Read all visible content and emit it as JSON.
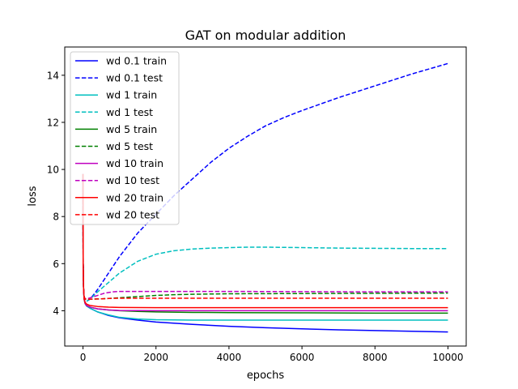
{
  "chart_data": {
    "type": "line",
    "title": "GAT on modular addition",
    "xlabel": "epochs",
    "ylabel": "loss",
    "xlim": [
      -500,
      10500
    ],
    "ylim": [
      2.5,
      15.2
    ],
    "xticks": [
      0,
      2000,
      4000,
      6000,
      8000,
      10000
    ],
    "yticks": [
      4,
      6,
      8,
      10,
      12,
      14
    ],
    "legend_position": "upper left",
    "grid": false,
    "series": [
      {
        "name": "wd 0.1 train",
        "color": "#0000ff",
        "style": "solid",
        "x": [
          0,
          5,
          15,
          30,
          60,
          100,
          200,
          400,
          700,
          1000,
          1500,
          2000,
          3000,
          4000,
          5000,
          6000,
          7000,
          8000,
          9000,
          10000
        ],
        "y": [
          9.8,
          6.0,
          5.0,
          4.5,
          4.3,
          4.2,
          4.1,
          3.95,
          3.8,
          3.7,
          3.6,
          3.52,
          3.42,
          3.34,
          3.28,
          3.23,
          3.19,
          3.16,
          3.13,
          3.1
        ]
      },
      {
        "name": "wd 0.1 test",
        "color": "#0000ff",
        "style": "dashed",
        "x": [
          0,
          5,
          15,
          30,
          60,
          100,
          200,
          400,
          700,
          1000,
          1500,
          2000,
          2500,
          3000,
          3500,
          4000,
          4500,
          5000,
          5500,
          6000,
          7000,
          8000,
          9000,
          10000
        ],
        "y": [
          9.8,
          6.0,
          5.0,
          4.6,
          4.45,
          4.4,
          4.5,
          4.9,
          5.6,
          6.3,
          7.3,
          8.1,
          8.9,
          9.6,
          10.3,
          10.9,
          11.4,
          11.85,
          12.2,
          12.5,
          13.05,
          13.55,
          14.05,
          14.5
        ]
      },
      {
        "name": "wd 1 train",
        "color": "#00bfbf",
        "style": "solid",
        "x": [
          0,
          5,
          15,
          30,
          60,
          100,
          200,
          400,
          700,
          1000,
          1500,
          2000,
          3000,
          4000,
          5000,
          6000,
          8000,
          10000
        ],
        "y": [
          9.8,
          6.0,
          5.0,
          4.5,
          4.3,
          4.2,
          4.1,
          3.95,
          3.82,
          3.72,
          3.65,
          3.62,
          3.6,
          3.6,
          3.6,
          3.6,
          3.6,
          3.6
        ]
      },
      {
        "name": "wd 1 test",
        "color": "#00bfbf",
        "style": "dashed",
        "x": [
          0,
          5,
          15,
          30,
          60,
          100,
          200,
          400,
          700,
          1000,
          1500,
          2000,
          2500,
          3000,
          3500,
          4000,
          4500,
          5000,
          5500,
          6000,
          7000,
          8000,
          9000,
          10000
        ],
        "y": [
          9.8,
          6.0,
          5.0,
          4.6,
          4.45,
          4.4,
          4.5,
          4.8,
          5.2,
          5.6,
          6.1,
          6.4,
          6.55,
          6.62,
          6.66,
          6.68,
          6.7,
          6.7,
          6.69,
          6.68,
          6.66,
          6.65,
          6.64,
          6.64
        ]
      },
      {
        "name": "wd 5 train",
        "color": "#008000",
        "style": "solid",
        "x": [
          0,
          5,
          15,
          30,
          60,
          100,
          200,
          400,
          700,
          1000,
          1500,
          2000,
          3000,
          4000,
          6000,
          8000,
          10000
        ],
        "y": [
          9.8,
          6.0,
          5.0,
          4.5,
          4.3,
          4.22,
          4.15,
          4.08,
          4.03,
          4.0,
          3.97,
          3.95,
          3.93,
          3.92,
          3.91,
          3.9,
          3.9
        ]
      },
      {
        "name": "wd 5 test",
        "color": "#008000",
        "style": "dashed",
        "x": [
          0,
          5,
          15,
          30,
          60,
          100,
          200,
          400,
          700,
          1000,
          1500,
          2000,
          2500,
          3000,
          4000,
          6000,
          8000,
          10000
        ],
        "y": [
          9.8,
          6.0,
          5.0,
          4.6,
          4.5,
          4.48,
          4.49,
          4.5,
          4.52,
          4.55,
          4.6,
          4.65,
          4.68,
          4.7,
          4.72,
          4.73,
          4.74,
          4.75
        ]
      },
      {
        "name": "wd 10 train",
        "color": "#bf00bf",
        "style": "solid",
        "x": [
          0,
          5,
          15,
          30,
          60,
          100,
          200,
          400,
          700,
          1000,
          2000,
          4000,
          6000,
          8000,
          10000
        ],
        "y": [
          9.8,
          6.0,
          5.0,
          4.5,
          4.3,
          4.22,
          4.15,
          4.08,
          4.03,
          4.01,
          4.0,
          4.0,
          4.0,
          4.0,
          4.0
        ]
      },
      {
        "name": "wd 10 test",
        "color": "#bf00bf",
        "style": "dashed",
        "x": [
          0,
          5,
          15,
          30,
          60,
          100,
          200,
          400,
          600,
          800,
          1000,
          1500,
          2000,
          4000,
          6000,
          8000,
          10000
        ],
        "y": [
          9.8,
          6.0,
          5.0,
          4.6,
          4.5,
          4.5,
          4.55,
          4.65,
          4.75,
          4.8,
          4.82,
          4.82,
          4.82,
          4.82,
          4.81,
          4.8,
          4.8
        ]
      },
      {
        "name": "wd 20 train",
        "color": "#ff0000",
        "style": "solid",
        "x": [
          0,
          5,
          15,
          30,
          60,
          100,
          200,
          400,
          700,
          1000,
          2000,
          4000,
          6000,
          8000,
          10000
        ],
        "y": [
          9.8,
          6.0,
          5.0,
          4.5,
          4.35,
          4.28,
          4.22,
          4.18,
          4.15,
          4.14,
          4.13,
          4.13,
          4.13,
          4.13,
          4.13
        ]
      },
      {
        "name": "wd 20 test",
        "color": "#ff0000",
        "style": "dashed",
        "x": [
          0,
          5,
          15,
          30,
          60,
          100,
          200,
          400,
          700,
          1000,
          2000,
          4000,
          6000,
          8000,
          10000
        ],
        "y": [
          9.8,
          6.0,
          5.0,
          4.6,
          4.5,
          4.48,
          4.49,
          4.5,
          4.52,
          4.53,
          4.53,
          4.53,
          4.53,
          4.53,
          4.53
        ]
      }
    ]
  }
}
